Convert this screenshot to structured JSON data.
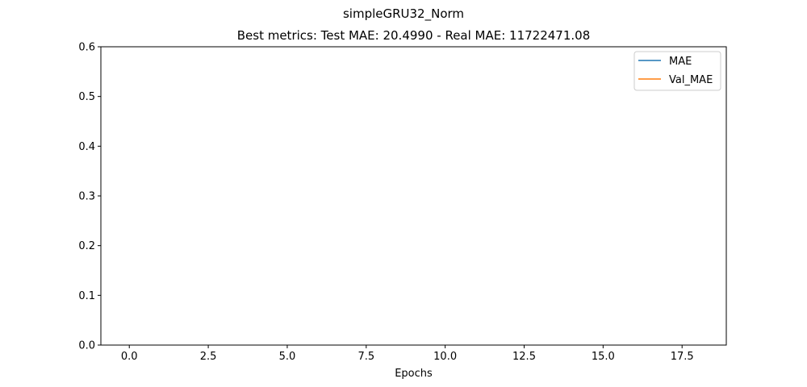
{
  "chart_data": {
    "type": "line",
    "suptitle": "simpleGRU32_Norm",
    "title": "Best metrics: Test MAE: 20.4990 - Real MAE: 11722471.08",
    "xlabel": "Epochs",
    "ylabel": "",
    "xlim": [
      -0.9,
      18.9
    ],
    "ylim": [
      0,
      0.6
    ],
    "xticks": [
      0.0,
      2.5,
      5.0,
      7.5,
      10.0,
      12.5,
      15.0,
      17.5
    ],
    "xtick_labels": [
      "0.0",
      "2.5",
      "5.0",
      "7.5",
      "10.0",
      "12.5",
      "15.0",
      "17.5"
    ],
    "yticks": [
      0.0,
      0.1,
      0.2,
      0.3,
      0.4,
      0.5,
      0.6
    ],
    "ytick_labels": [
      "0.0",
      "0.1",
      "0.2",
      "0.3",
      "0.4",
      "0.5",
      "0.6"
    ],
    "grid": false,
    "legend_position": "top-right",
    "series": [
      {
        "name": "MAE",
        "color": "#1f77b4",
        "x": [],
        "y": []
      },
      {
        "name": "Val_MAE",
        "color": "#ff7f0e",
        "x": [],
        "y": []
      }
    ]
  }
}
